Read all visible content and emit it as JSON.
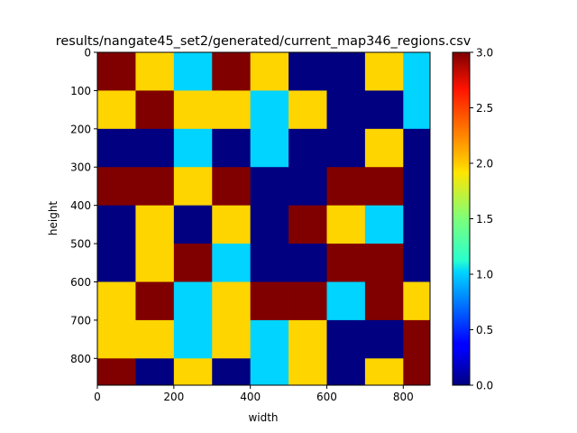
{
  "chart_data": {
    "type": "heatmap",
    "title": "results/nangate45_set2/generated/current_map346_regions.csv",
    "xlabel": "width",
    "ylabel": "height",
    "x_extent": [
      0,
      870
    ],
    "y_extent": [
      0,
      870
    ],
    "cell_size": 100,
    "x_ticks": [
      0,
      200,
      400,
      600,
      800
    ],
    "y_ticks": [
      0,
      100,
      200,
      300,
      400,
      500,
      600,
      700,
      800
    ],
    "y_inverted": true,
    "colormap": "jet",
    "colorbar": {
      "range": [
        0.0,
        3.0
      ],
      "ticks": [
        "0.0",
        "0.5",
        "1.0",
        "1.5",
        "2.0",
        "2.5",
        "3.0"
      ]
    },
    "values": [
      [
        3,
        2,
        1,
        3,
        2,
        0,
        0,
        2,
        1
      ],
      [
        2,
        3,
        2,
        2,
        1,
        2,
        0,
        0,
        1
      ],
      [
        0,
        0,
        1,
        0,
        1,
        0,
        0,
        2,
        0
      ],
      [
        3,
        3,
        2,
        3,
        0,
        0,
        3,
        3,
        0
      ],
      [
        0,
        2,
        0,
        2,
        0,
        3,
        2,
        1,
        0
      ],
      [
        0,
        2,
        3,
        1,
        0,
        0,
        3,
        3,
        0
      ],
      [
        2,
        3,
        1,
        2,
        3,
        3,
        1,
        3,
        2
      ],
      [
        2,
        2,
        1,
        2,
        1,
        2,
        0,
        0,
        3
      ],
      [
        3,
        0,
        2,
        0,
        1,
        2,
        0,
        2,
        3
      ]
    ]
  }
}
